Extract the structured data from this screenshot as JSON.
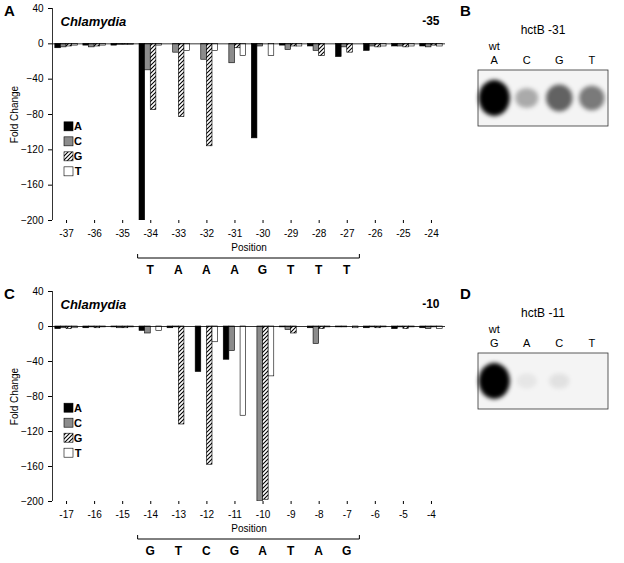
{
  "chart_data": [
    {
      "panel_label": "A",
      "type": "bar",
      "title": "Chlamydia",
      "subtitle": "-35",
      "x_label": "Position",
      "y_label": "Fold Change",
      "categories": [
        "-37",
        "-36",
        "-35",
        "-34",
        "-33",
        "-32",
        "-31",
        "-30",
        "-29",
        "-28",
        "-27",
        "-26",
        "-25",
        "-24"
      ],
      "series": [
        {
          "name": "A",
          "color": "#000000",
          "line_style": "solid",
          "values": [
            -5,
            -2,
            -2,
            -200,
            0,
            0,
            0,
            -107,
            -2,
            -3,
            -15,
            -8,
            -3,
            -3
          ]
        },
        {
          "name": "C",
          "color": "#8c8c8c",
          "line_style": "solid",
          "values": [
            -4,
            -4,
            -1,
            -30,
            -10,
            -18,
            -22,
            -3,
            -7,
            -8,
            -4,
            -3,
            -3,
            -4
          ]
        },
        {
          "name": "G",
          "color": "#000000",
          "line_style": "hatched",
          "values": [
            -3,
            -3,
            -1,
            -75,
            -83,
            -116,
            -5,
            0,
            -3,
            -14,
            -10,
            -4,
            -4,
            -2
          ]
        },
        {
          "name": "T",
          "color": "#ffffff",
          "line_style": "solid",
          "values": [
            -2,
            -2,
            -1,
            -2,
            -8,
            -8,
            -14,
            -14,
            -3,
            0,
            0,
            -3,
            -3,
            -3
          ]
        }
      ],
      "ylim": [
        -200,
        40
      ],
      "yticks": [
        -200,
        -160,
        -120,
        -80,
        -40,
        0,
        40
      ],
      "legend": "left",
      "motif": {
        "positions": [
          "-34",
          "-33",
          "-32",
          "-31",
          "-30",
          "-29",
          "-28",
          "-27"
        ],
        "letters": [
          "T",
          "A",
          "A",
          "A",
          "G",
          "T",
          "T",
          "T"
        ]
      }
    },
    {
      "panel_label": "B",
      "type": "blot",
      "title": "hctB -31",
      "annotation": "wt",
      "categories": [
        "A",
        "C",
        "G",
        "T"
      ],
      "values": [
        100,
        30,
        60,
        50
      ]
    },
    {
      "panel_label": "C",
      "type": "bar",
      "title": "Chlamydia",
      "subtitle": "-10",
      "x_label": "Position",
      "y_label": "Fold Change",
      "categories": [
        "-17",
        "-16",
        "-15",
        "-14",
        "-13",
        "-12",
        "-11",
        "-10",
        "-9",
        "-8",
        "-7",
        "-6",
        "-5",
        "-4"
      ],
      "series": [
        {
          "name": "A",
          "color": "#000000",
          "line_style": "solid",
          "values": [
            -3,
            -2,
            -1,
            -5,
            -2,
            -52,
            -38,
            0,
            -1,
            -2,
            -1,
            -2,
            -3,
            -2
          ]
        },
        {
          "name": "C",
          "color": "#8c8c8c",
          "line_style": "solid",
          "values": [
            -2,
            -1,
            -2,
            -8,
            -1,
            0,
            -28,
            -200,
            -4,
            -20,
            -1,
            -1,
            -1,
            -3
          ]
        },
        {
          "name": "G",
          "color": "#000000",
          "line_style": "hatched",
          "values": [
            -3,
            -2,
            -2,
            0,
            -112,
            -158,
            0,
            -198,
            -8,
            -3,
            0,
            -2,
            -3,
            -1
          ]
        },
        {
          "name": "T",
          "color": "#ffffff",
          "line_style": "solid",
          "values": [
            -2,
            -1,
            -1,
            -5,
            0,
            -18,
            -102,
            -57,
            0,
            -1,
            -2,
            -1,
            -1,
            -3
          ]
        }
      ],
      "ylim": [
        -200,
        40
      ],
      "yticks": [
        -200,
        -160,
        -120,
        -80,
        -40,
        0,
        40
      ],
      "legend": "left",
      "motif": {
        "positions": [
          "-14",
          "-13",
          "-12",
          "-11",
          "-10",
          "-9",
          "-8",
          "-7"
        ],
        "letters": [
          "G",
          "T",
          "C",
          "G",
          "A",
          "T",
          "A",
          "G"
        ]
      }
    },
    {
      "panel_label": "D",
      "type": "blot",
      "title": "hctB -11",
      "annotation": "wt",
      "categories": [
        "G",
        "A",
        "C",
        "T"
      ],
      "values": [
        100,
        6,
        8,
        0
      ]
    }
  ]
}
